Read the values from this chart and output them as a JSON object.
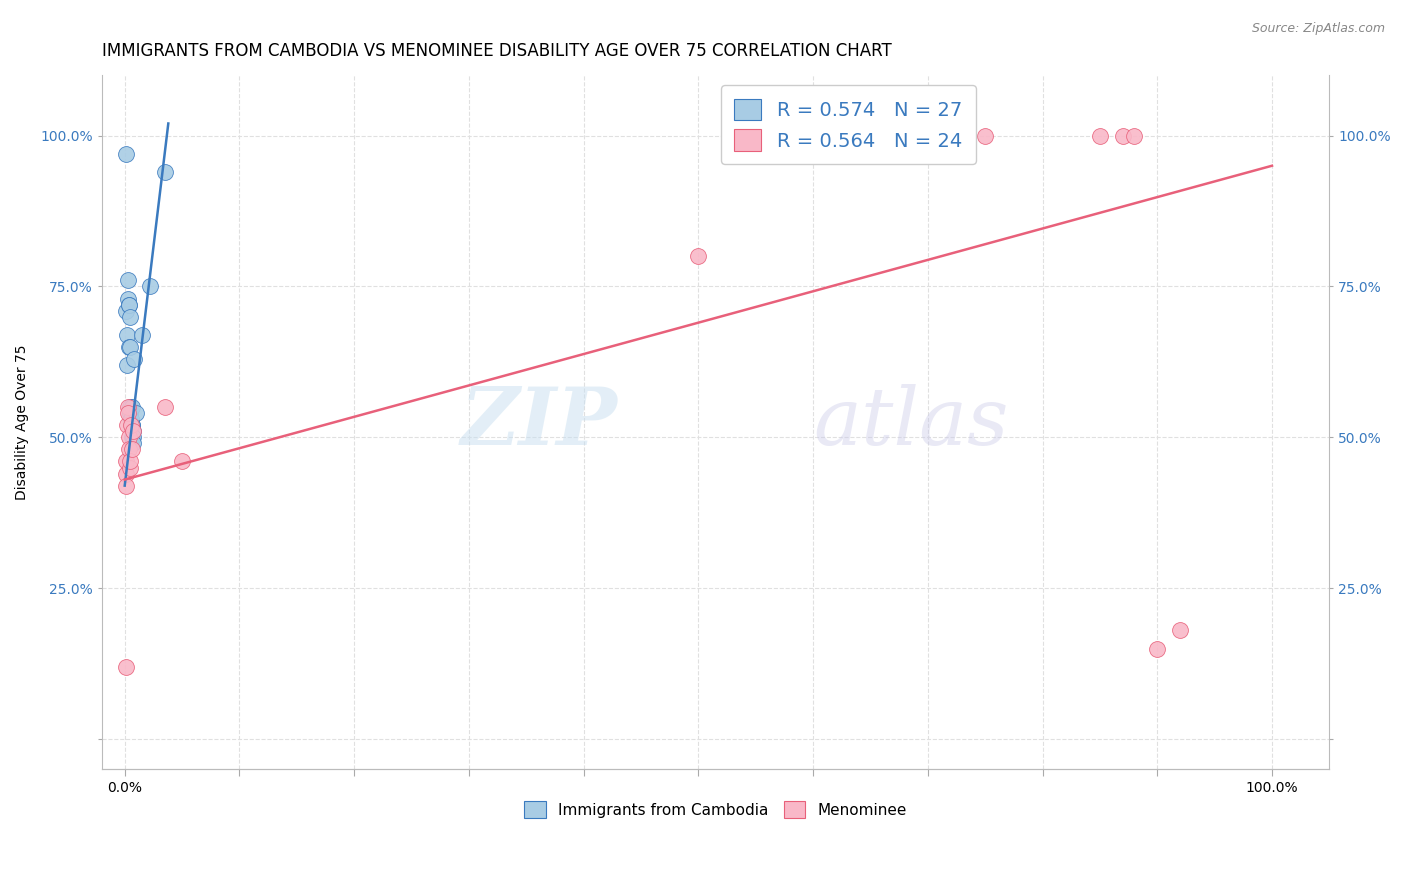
{
  "title": "IMMIGRANTS FROM CAMBODIA VS MENOMINEE DISABILITY AGE OVER 75 CORRELATION CHART",
  "source": "Source: ZipAtlas.com",
  "ylabel": "Disability Age Over 75",
  "legend_label1": "Immigrants from Cambodia",
  "legend_label2": "Menominee",
  "R1": 0.574,
  "N1": 27,
  "R2": 0.564,
  "N2": 24,
  "blue_color": "#a8cce4",
  "pink_color": "#f9b8c8",
  "blue_line_color": "#3a7abf",
  "pink_line_color": "#e8607a",
  "blue_scatter_x": [
    0.1,
    0.15,
    0.2,
    0.2,
    0.3,
    0.3,
    0.35,
    0.4,
    0.4,
    0.45,
    0.5,
    0.5,
    0.5,
    0.55,
    0.55,
    0.6,
    0.6,
    0.6,
    0.6,
    0.7,
    0.7,
    0.7,
    0.8,
    1.0,
    1.5,
    2.2,
    3.5
  ],
  "blue_scatter_y": [
    97,
    71,
    67,
    62,
    76,
    73,
    72,
    65,
    72,
    70,
    65,
    55,
    54,
    53,
    52,
    55,
    52,
    52,
    50,
    51,
    50,
    49,
    63,
    54,
    67,
    75,
    94
  ],
  "pink_scatter_x": [
    0.1,
    0.1,
    0.15,
    0.15,
    0.2,
    0.3,
    0.3,
    0.35,
    0.4,
    0.5,
    0.5,
    0.55,
    0.6,
    0.7,
    3.5,
    5.0,
    50,
    60,
    75,
    85,
    87,
    88,
    90,
    92
  ],
  "pink_scatter_y": [
    44,
    42,
    46,
    12,
    52,
    55,
    54,
    50,
    48,
    45,
    46,
    52,
    48,
    51,
    55,
    46,
    80,
    100,
    100,
    100,
    100,
    100,
    15,
    18
  ],
  "blue_line_x": [
    0,
    3.8
  ],
  "blue_line_y": [
    42,
    102
  ],
  "pink_line_x": [
    0,
    100
  ],
  "pink_line_y": [
    43,
    95
  ],
  "xlim": [
    -2,
    105
  ],
  "ylim": [
    -5,
    110
  ],
  "x_ticks": [
    0,
    10,
    20,
    30,
    40,
    50,
    60,
    70,
    80,
    90,
    100
  ],
  "y_ticks": [
    0,
    25,
    50,
    75,
    100
  ],
  "background_color": "#ffffff",
  "grid_color": "#e0e0e0",
  "title_fontsize": 12,
  "tick_fontsize": 10,
  "tick_color": "#3a7abf"
}
